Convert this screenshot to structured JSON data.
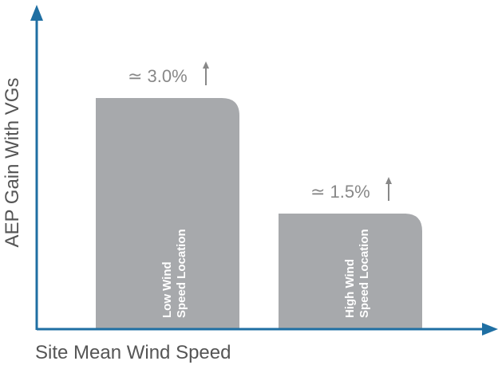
{
  "chart_data": {
    "type": "bar",
    "categories": [
      [
        "Low Wind",
        "Speed Location"
      ],
      [
        "High Wind",
        "Speed Location"
      ]
    ],
    "values": [
      3.0,
      1.5
    ],
    "annotations": [
      "≃ 3.0%",
      "≃ 1.5%"
    ],
    "xlabel": "Site Mean Wind Speed",
    "ylabel": "AEP Gain With VGs",
    "ylim": [
      0,
      3.9
    ],
    "grid": false,
    "colors": {
      "axis": "#1f6fa3",
      "bar": "#a7a9ac",
      "label_on_bar": "#ffffff",
      "annotation": "#888888",
      "axis_text": "#555555"
    }
  }
}
